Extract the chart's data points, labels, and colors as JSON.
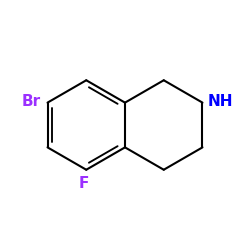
{
  "background_color": "#ffffff",
  "bond_color": "#000000",
  "nh_color": "#0000ff",
  "br_label_color": "#9b30ff",
  "f_label_color": "#9b30ff",
  "br_label": "Br",
  "f_label": "F",
  "nh_label": "NH",
  "label_fontsize": 11,
  "figsize": [
    2.5,
    2.5
  ],
  "dpi": 100
}
